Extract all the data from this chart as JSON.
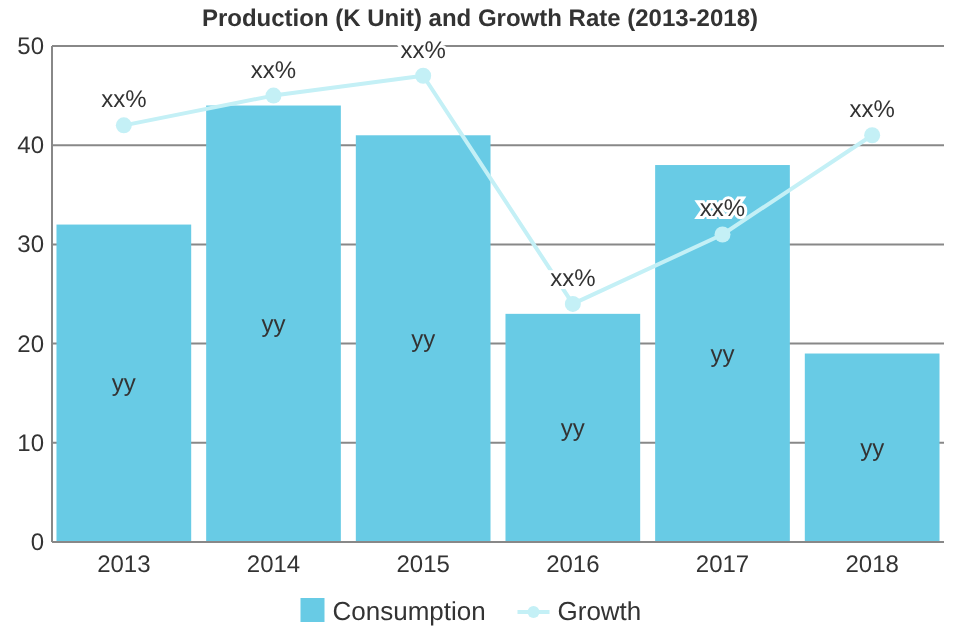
{
  "chart_data": {
    "type": "bar",
    "title": "Production (K Unit) and Growth Rate (2013-2018)",
    "categories": [
      "2013",
      "2014",
      "2015",
      "2016",
      "2017",
      "2018"
    ],
    "series": [
      {
        "name": "Consumption",
        "color": "#68cbe5",
        "values": [
          32,
          44,
          41,
          23,
          38,
          19
        ],
        "value_labels": [
          "yy",
          "yy",
          "yy",
          "yy",
          "yy",
          "yy"
        ]
      },
      {
        "name": "Growth",
        "type": "line",
        "color": "#c4f0f6",
        "marker": "circle",
        "values": [
          42,
          45,
          47,
          24,
          31,
          41
        ],
        "value_labels": [
          "xx%",
          "xx%",
          "xx%",
          "xx%",
          "xx%",
          "xx%"
        ]
      }
    ],
    "ylim": [
      0,
      50
    ],
    "yticks": [
      0,
      10,
      20,
      30,
      40,
      50
    ],
    "grid": "y",
    "legend": "bottom"
  }
}
